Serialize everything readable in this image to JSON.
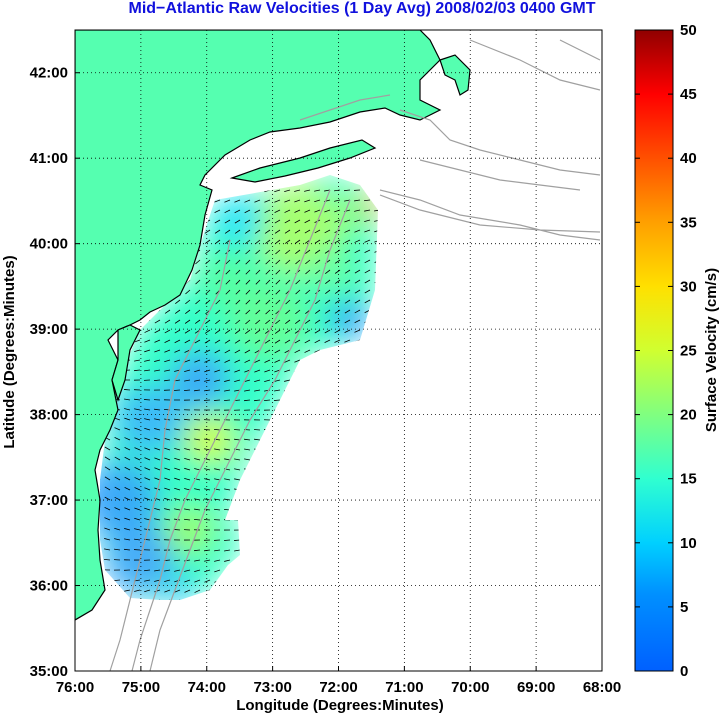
{
  "title": "Mid−Atlantic Raw Velocities (1 Day Avg) 2008/02/03 0400 GMT",
  "chart_data": {
    "type": "heatmap",
    "title": "Mid−Atlantic Raw Velocities (1 Day Avg) 2008/02/03 0400 GMT",
    "xlabel": "Longitude (Degrees:Minutes)",
    "ylabel": "Latitude (Degrees:Minutes)",
    "x_ticks": [
      "76:00",
      "75:00",
      "74:00",
      "73:00",
      "72:00",
      "71:00",
      "70:00",
      "69:00",
      "68:00"
    ],
    "y_ticks": [
      "35:00",
      "36:00",
      "37:00",
      "38:00",
      "39:00",
      "40:00",
      "41:00",
      "42:00"
    ],
    "xlim_west_deg": [
      76,
      68
    ],
    "ylim_north_deg": [
      35,
      42.5
    ],
    "grid": true,
    "colorbar": {
      "label": "Surface Velocity (cm/s)",
      "ticks": [
        "0",
        "5",
        "10",
        "15",
        "20",
        "25",
        "30",
        "35",
        "40",
        "45",
        "50"
      ],
      "range": [
        0,
        50
      ],
      "colormap": "jet"
    }
  },
  "colors": {
    "land": "#55ffb0",
    "coast": "#000000",
    "bathymetry": "#a0a0a0",
    "grid": "#000000",
    "title": "#1111dd"
  }
}
